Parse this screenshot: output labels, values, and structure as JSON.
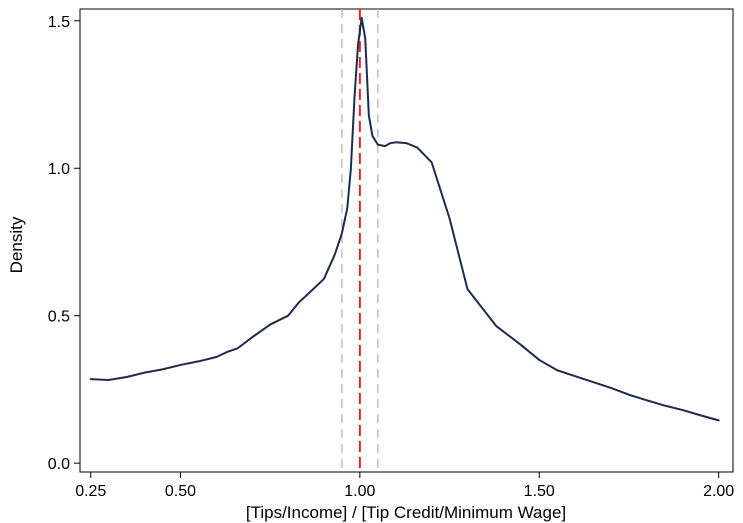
{
  "chart_data": {
    "type": "line",
    "title": "",
    "xlabel": "[Tips/Income] / [Tip Credit/Minimum Wage]",
    "ylabel": "Density",
    "xlim": [
      0.22,
      2.04
    ],
    "ylim": [
      -0.03,
      1.54
    ],
    "x_ticks": [
      {
        "value": 0.25,
        "label": "0.25"
      },
      {
        "value": 0.5,
        "label": "0.50"
      },
      {
        "value": 1.0,
        "label": "1.00"
      },
      {
        "value": 1.5,
        "label": "1.50"
      },
      {
        "value": 2.0,
        "label": "2.00"
      }
    ],
    "y_ticks": [
      {
        "value": 0.0,
        "label": "0.0"
      },
      {
        "value": 0.5,
        "label": "0.5"
      },
      {
        "value": 1.0,
        "label": "1.0"
      },
      {
        "value": 1.5,
        "label": "1.5"
      }
    ],
    "grid": false,
    "legend": "none",
    "reference_lines": [
      {
        "x": 1.0,
        "style": "dashed",
        "color": "#e8231f"
      },
      {
        "x": 0.95,
        "style": "dashed",
        "color": "#c0c0c0"
      },
      {
        "x": 1.05,
        "style": "dashed",
        "color": "#c0c0c0"
      }
    ],
    "series": [
      {
        "color": "#1f2a4f",
        "x": [
          0.25,
          0.3,
          0.35,
          0.4,
          0.45,
          0.5,
          0.55,
          0.6,
          0.63,
          0.66,
          0.7,
          0.75,
          0.8,
          0.83,
          0.87,
          0.9,
          0.93,
          0.95,
          0.965,
          0.975,
          0.985,
          0.995,
          1.005,
          1.015,
          1.025,
          1.035,
          1.05,
          1.07,
          1.085,
          1.1,
          1.13,
          1.16,
          1.2,
          1.25,
          1.3,
          1.38,
          1.45,
          1.5,
          1.55,
          1.6,
          1.65,
          1.7,
          1.75,
          1.8,
          1.85,
          1.9,
          1.95,
          2.0
        ],
        "y": [
          0.285,
          0.282,
          0.292,
          0.307,
          0.318,
          0.333,
          0.345,
          0.36,
          0.377,
          0.39,
          0.427,
          0.47,
          0.5,
          0.545,
          0.59,
          0.625,
          0.707,
          0.78,
          0.865,
          1.0,
          1.24,
          1.42,
          1.51,
          1.44,
          1.18,
          1.11,
          1.08,
          1.075,
          1.085,
          1.088,
          1.085,
          1.07,
          1.02,
          0.83,
          0.59,
          0.465,
          0.4,
          0.35,
          0.315,
          0.295,
          0.275,
          0.255,
          0.232,
          0.213,
          0.195,
          0.18,
          0.162,
          0.145
        ]
      }
    ]
  }
}
